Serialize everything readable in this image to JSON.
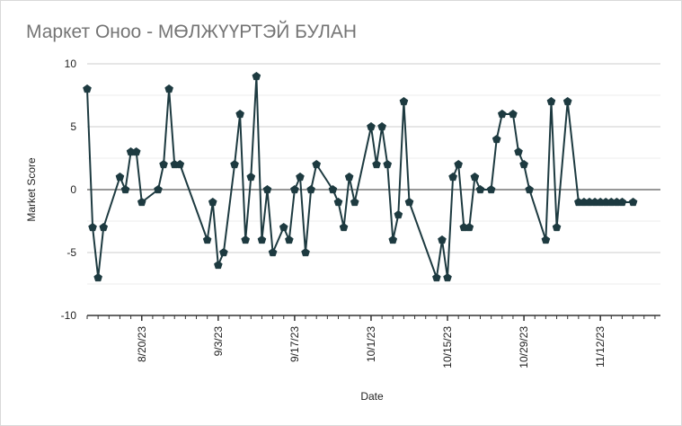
{
  "chart_data": {
    "type": "line",
    "title": "Маркет Оноо - МӨЛЖҮҮРТЭЙ БУЛАН",
    "xlabel": "Date",
    "ylabel": "Market Score",
    "ylim": [
      -10,
      10
    ],
    "yticks": [
      10,
      5,
      0,
      -5,
      -10
    ],
    "xlim": [
      "2023-08-10",
      "2023-11-23"
    ],
    "xticks": [
      "2023-08-20",
      "2023-09-03",
      "2023-09-17",
      "2023-10-01",
      "2023-10-15",
      "2023-10-29",
      "2023-11-12"
    ],
    "xtick_labels": [
      "8/20/23",
      "9/3/23",
      "9/17/23",
      "10/1/23",
      "10/15/23",
      "10/29/23",
      "11/12/23"
    ],
    "grid": true,
    "legend": "none",
    "line_color": "#1d3a40",
    "zero_line_color": "#777777",
    "series": [
      {
        "x": [
          "2023-08-10",
          "2023-08-11",
          "2023-08-12",
          "2023-08-13",
          "2023-08-16",
          "2023-08-17",
          "2023-08-18",
          "2023-08-19",
          "2023-08-20",
          "2023-08-23",
          "2023-08-24",
          "2023-08-25",
          "2023-08-26",
          "2023-08-27",
          "2023-09-01",
          "2023-09-02",
          "2023-09-03",
          "2023-09-04",
          "2023-09-06",
          "2023-09-07",
          "2023-09-08",
          "2023-09-09",
          "2023-09-10",
          "2023-09-11",
          "2023-09-12",
          "2023-09-13",
          "2023-09-15",
          "2023-09-16",
          "2023-09-17",
          "2023-09-18",
          "2023-09-19",
          "2023-09-20",
          "2023-09-21",
          "2023-09-24",
          "2023-09-25",
          "2023-09-26",
          "2023-09-27",
          "2023-09-28",
          "2023-10-01",
          "2023-10-02",
          "2023-10-03",
          "2023-10-04",
          "2023-10-05",
          "2023-10-06",
          "2023-10-07",
          "2023-10-08",
          "2023-10-13",
          "2023-10-14",
          "2023-10-15",
          "2023-10-16",
          "2023-10-17",
          "2023-10-18",
          "2023-10-19",
          "2023-10-20",
          "2023-10-21",
          "2023-10-23",
          "2023-10-24",
          "2023-10-25",
          "2023-10-27",
          "2023-10-28",
          "2023-10-29",
          "2023-10-30",
          "2023-11-02",
          "2023-11-03",
          "2023-11-04",
          "2023-11-06",
          "2023-11-08",
          "2023-11-09",
          "2023-11-10",
          "2023-11-11",
          "2023-11-12",
          "2023-11-13",
          "2023-11-14",
          "2023-11-15",
          "2023-11-16",
          "2023-11-18"
        ],
        "y": [
          8,
          -3,
          -7,
          -3,
          1,
          0,
          3,
          3,
          -1,
          0,
          2,
          8,
          2,
          2,
          -4,
          -1,
          -6,
          -5,
          2,
          6,
          -4,
          1,
          9,
          -4,
          0,
          -5,
          -3,
          -4,
          0,
          1,
          -5,
          0,
          2,
          0,
          -1,
          -3,
          1,
          -1,
          5,
          2,
          5,
          2,
          -4,
          -2,
          7,
          -1,
          -7,
          -4,
          -7,
          1,
          2,
          -3,
          -3,
          1,
          0,
          0,
          4,
          6,
          6,
          3,
          2,
          0,
          -4,
          7,
          -3,
          7,
          -1,
          -1,
          -1,
          -1,
          -1,
          -1,
          -1,
          -1,
          -1,
          -1
        ]
      }
    ]
  }
}
